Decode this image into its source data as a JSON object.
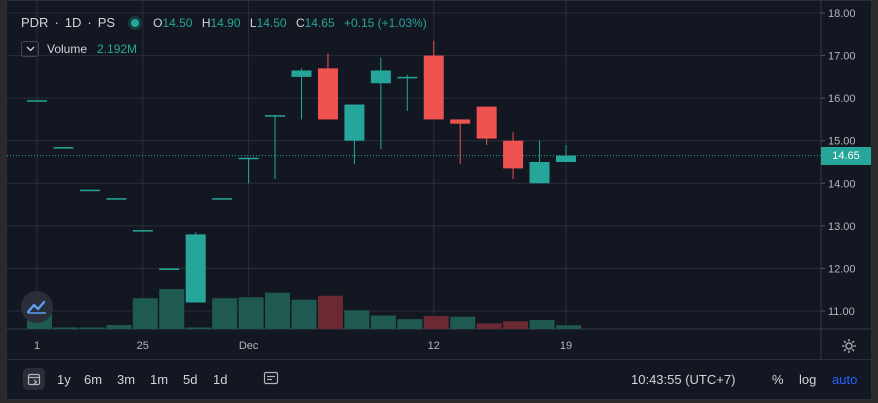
{
  "symbol": "PDR",
  "separator": "·",
  "interval": "1D",
  "exchange": "PS",
  "ohlc": {
    "open_label": "O",
    "open": "14.50",
    "high_label": "H",
    "high": "14.90",
    "low_label": "L",
    "low": "14.50",
    "close_label": "C",
    "close": "14.65",
    "change": "+0.15 (+1.03%)"
  },
  "volume": {
    "label": "Volume",
    "value": "2.192M"
  },
  "last_price_label": "14.65",
  "colors": {
    "up": "#26a69a",
    "down": "#ef5350",
    "background": "#131722",
    "grid": "#2a2e39",
    "accent": "#2962ff"
  },
  "icons": {
    "collapse": "chevron-down-icon",
    "logo": "tradingview-logo-icon",
    "settings": "gear-icon",
    "goto": "calendar-goto-icon"
  },
  "chart_data": {
    "type": "candlestick",
    "y_ticks": [
      18,
      17,
      16,
      15,
      14,
      13,
      12,
      11
    ],
    "y_tick_labels": [
      "18.00",
      "17.00",
      "16.00",
      "15.00",
      "14.00",
      "13.00",
      "12.00",
      "11.00"
    ],
    "ylim": [
      10.6,
      18.1
    ],
    "x_ticks": [
      {
        "label": "1",
        "index": 0
      },
      {
        "label": "25",
        "index": 4
      },
      {
        "label": "Dec",
        "index": 8
      },
      {
        "label": "12",
        "index": 15
      },
      {
        "label": "19",
        "index": 20
      }
    ],
    "last_price": 14.65,
    "candles": [
      {
        "o": 15.95,
        "h": 15.95,
        "l": 15.95,
        "c": 15.95
      },
      {
        "o": 14.85,
        "h": 14.85,
        "l": 14.85,
        "c": 14.85
      },
      {
        "o": 13.85,
        "h": 13.85,
        "l": 13.85,
        "c": 13.85
      },
      {
        "o": 13.65,
        "h": 13.65,
        "l": 13.65,
        "c": 13.65
      },
      {
        "o": 12.9,
        "h": 12.9,
        "l": 12.9,
        "c": 12.9
      },
      {
        "o": 12.0,
        "h": 12.0,
        "l": 12.0,
        "c": 12.0
      },
      {
        "o": 11.2,
        "h": 12.85,
        "l": 11.2,
        "c": 12.8
      },
      {
        "o": 13.65,
        "h": 13.65,
        "l": 13.65,
        "c": 13.65
      },
      {
        "o": 14.6,
        "h": 14.6,
        "l": 14.0,
        "c": 14.6
      },
      {
        "o": 15.6,
        "h": 15.6,
        "l": 14.1,
        "c": 15.6
      },
      {
        "o": 16.5,
        "h": 16.7,
        "l": 15.5,
        "c": 16.65
      },
      {
        "o": 16.7,
        "h": 17.05,
        "l": 15.5,
        "c": 15.5
      },
      {
        "o": 15.0,
        "h": 15.85,
        "l": 14.45,
        "c": 15.85
      },
      {
        "o": 16.35,
        "h": 16.95,
        "l": 14.8,
        "c": 16.65
      },
      {
        "o": 16.5,
        "h": 16.55,
        "l": 15.7,
        "c": 16.5
      },
      {
        "o": 17.0,
        "h": 17.35,
        "l": 15.5,
        "c": 15.5
      },
      {
        "o": 15.5,
        "h": 15.5,
        "l": 14.45,
        "c": 15.4
      },
      {
        "o": 15.8,
        "h": 15.8,
        "l": 14.9,
        "c": 15.05
      },
      {
        "o": 15.0,
        "h": 15.2,
        "l": 14.1,
        "c": 14.35
      },
      {
        "o": 14.0,
        "h": 15.0,
        "l": 14.0,
        "c": 14.5
      },
      {
        "o": 14.5,
        "h": 14.9,
        "l": 14.5,
        "c": 14.65
      }
    ],
    "volumes": [
      {
        "v": 0.55,
        "dir": "up"
      },
      {
        "v": 0.05,
        "dir": "up"
      },
      {
        "v": 0.05,
        "dir": "up"
      },
      {
        "v": 0.13,
        "dir": "up"
      },
      {
        "v": 1.0,
        "dir": "up"
      },
      {
        "v": 1.3,
        "dir": "up"
      },
      {
        "v": 0.05,
        "dir": "up"
      },
      {
        "v": 1.0,
        "dir": "up"
      },
      {
        "v": 1.03,
        "dir": "up"
      },
      {
        "v": 1.18,
        "dir": "up"
      },
      {
        "v": 0.95,
        "dir": "up"
      },
      {
        "v": 1.08,
        "dir": "down"
      },
      {
        "v": 0.61,
        "dir": "up"
      },
      {
        "v": 0.44,
        "dir": "up"
      },
      {
        "v": 0.32,
        "dir": "up"
      },
      {
        "v": 0.42,
        "dir": "down"
      },
      {
        "v": 0.4,
        "dir": "up"
      },
      {
        "v": 0.18,
        "dir": "down"
      },
      {
        "v": 0.25,
        "dir": "down"
      },
      {
        "v": 0.29,
        "dir": "up"
      },
      {
        "v": 0.12,
        "dir": "up"
      }
    ]
  },
  "bottom_bar": {
    "ranges": [
      "1y",
      "6m",
      "3m",
      "1m",
      "5d",
      "1d"
    ],
    "time": "10:43:55 (UTC+7)",
    "percent_label": "%",
    "log_label": "log",
    "auto_label": "auto"
  }
}
